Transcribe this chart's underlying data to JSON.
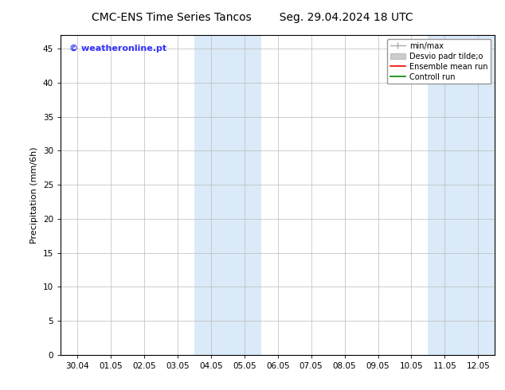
{
  "title_left": "CMC-ENS Time Series Tancos",
  "title_right": "Seg. 29.04.2024 18 UTC",
  "ylabel": "Precipitation (mm/6h)",
  "xlim_dates": [
    "30.04",
    "01.05",
    "02.05",
    "03.05",
    "04.05",
    "05.05",
    "06.05",
    "07.05",
    "08.05",
    "09.05",
    "10.05",
    "11.05",
    "12.05"
  ],
  "ylim": [
    0,
    47
  ],
  "yticks": [
    0,
    5,
    10,
    15,
    20,
    25,
    30,
    35,
    40,
    45
  ],
  "shaded_regions": [
    {
      "xstart": 3.5,
      "xend": 5.5,
      "color": "#daeaf8"
    },
    {
      "xstart": 10.5,
      "xend": 12.5,
      "color": "#daeaf8"
    }
  ],
  "watermark_text": "© weatheronline.pt",
  "watermark_color": "#3333ff",
  "watermark_fontsize": 8,
  "title_fontsize": 10,
  "ylabel_fontsize": 8,
  "tick_fontsize": 7.5,
  "legend_labels": [
    "min/max",
    "Desvio padr tilde;o",
    "Ensemble mean run",
    "Controll run"
  ],
  "legend_colors": [
    "#aaaaaa",
    "#cccccc",
    "#ff0000",
    "#008800"
  ],
  "background_color": "#ffffff",
  "plot_bg_color": "#ffffff",
  "grid_color": "#bbbbbb",
  "n_xticks": 13
}
